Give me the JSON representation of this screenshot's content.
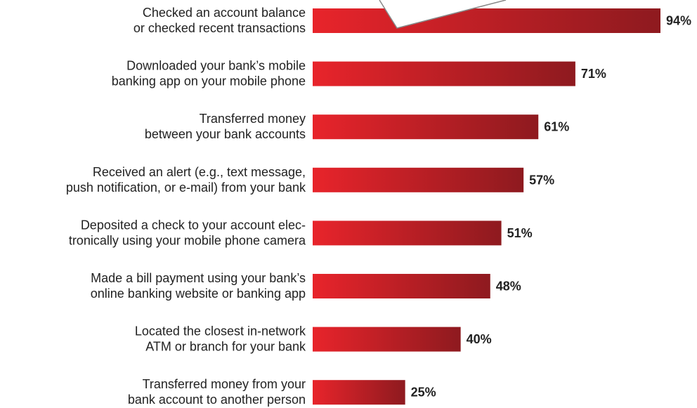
{
  "chart_data": {
    "type": "bar",
    "orientation": "horizontal",
    "categories": [
      [
        "Checked an account balance",
        "or checked recent transactions"
      ],
      [
        "Downloaded your bank’s mobile",
        "banking app on your mobile phone"
      ],
      [
        "Transferred money",
        "between your bank accounts"
      ],
      [
        "Received an alert (e.g., text message,",
        "push notification, or e-mail) from your bank"
      ],
      [
        "Deposited a check to your account elec-",
        "tronically using your mobile phone camera"
      ],
      [
        "Made a bill payment using your bank’s",
        "online banking website or banking app"
      ],
      [
        "Located the closest in-network",
        "ATM or branch for your bank"
      ],
      [
        "Transferred money from your",
        "bank account to another person"
      ]
    ],
    "values": [
      94,
      71,
      61,
      57,
      51,
      48,
      40,
      25
    ],
    "value_labels": [
      "94%",
      "71%",
      "61%",
      "57%",
      "51%",
      "48%",
      "40%",
      "25%"
    ],
    "xlim": [
      0,
      100
    ],
    "grid": false,
    "legend": "none",
    "colors": {
      "bar_light": "#e8242b",
      "bar_dark": "#8e1a1f",
      "callout_stroke": "#888888"
    }
  }
}
